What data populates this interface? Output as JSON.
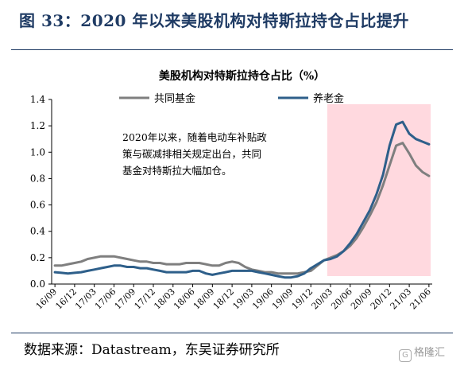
{
  "figure": {
    "title": "图 33：2020 年以来美股机构对特斯拉持仓占比提升",
    "source": "数据来源：Datastream，东吴证券研究所",
    "watermark": "格隆汇"
  },
  "chart_data": {
    "type": "line",
    "title": "美股机构对特斯拉持仓占比（%）",
    "xlabel": "",
    "ylabel": "",
    "ylim": [
      0,
      1.4
    ],
    "yticks": [
      "0.0",
      "0.2",
      "0.4",
      "0.6",
      "0.8",
      "1.0",
      "1.2",
      "1.4"
    ],
    "grid": false,
    "legend_position": "top",
    "x_tick_labels": [
      "16/09",
      "16/12",
      "17/03",
      "17/06",
      "17/09",
      "17/12",
      "18/03",
      "18/06",
      "18/09",
      "18/12",
      "19/03",
      "19/06",
      "19/09",
      "19/12",
      "20/03",
      "20/06",
      "20/09",
      "20/12",
      "21/03",
      "21/06"
    ],
    "x": [
      "16/09",
      "16/10",
      "16/11",
      "16/12",
      "17/01",
      "17/02",
      "17/03",
      "17/04",
      "17/05",
      "17/06",
      "17/07",
      "17/08",
      "17/09",
      "17/10",
      "17/11",
      "17/12",
      "18/01",
      "18/02",
      "18/03",
      "18/04",
      "18/05",
      "18/06",
      "18/07",
      "18/08",
      "18/09",
      "18/10",
      "18/11",
      "18/12",
      "19/01",
      "19/02",
      "19/03",
      "19/04",
      "19/05",
      "19/06",
      "19/07",
      "19/08",
      "19/09",
      "19/10",
      "19/11",
      "19/12",
      "20/01",
      "20/02",
      "20/03",
      "20/04",
      "20/05",
      "20/06",
      "20/07",
      "20/08",
      "20/09",
      "20/10",
      "20/11",
      "20/12",
      "21/01",
      "21/02",
      "21/03",
      "21/04",
      "21/05",
      "21/06"
    ],
    "series": [
      {
        "name": "共同基金",
        "color": "#7f7f7f",
        "values": [
          0.14,
          0.14,
          0.15,
          0.16,
          0.17,
          0.19,
          0.2,
          0.21,
          0.21,
          0.21,
          0.2,
          0.19,
          0.18,
          0.17,
          0.17,
          0.16,
          0.16,
          0.15,
          0.15,
          0.15,
          0.16,
          0.16,
          0.16,
          0.15,
          0.14,
          0.14,
          0.16,
          0.17,
          0.16,
          0.13,
          0.11,
          0.1,
          0.09,
          0.09,
          0.08,
          0.08,
          0.08,
          0.08,
          0.09,
          0.1,
          0.14,
          0.18,
          0.2,
          0.22,
          0.25,
          0.29,
          0.35,
          0.43,
          0.52,
          0.62,
          0.75,
          0.9,
          1.05,
          1.07,
          0.99,
          0.9,
          0.85,
          0.82
        ]
      },
      {
        "name": "养老金",
        "color": "#2e5f8a",
        "values": [
          0.09,
          0.085,
          0.08,
          0.085,
          0.09,
          0.1,
          0.11,
          0.12,
          0.13,
          0.14,
          0.14,
          0.13,
          0.13,
          0.12,
          0.12,
          0.11,
          0.1,
          0.09,
          0.09,
          0.09,
          0.09,
          0.1,
          0.1,
          0.08,
          0.07,
          0.08,
          0.09,
          0.1,
          0.1,
          0.1,
          0.1,
          0.09,
          0.08,
          0.07,
          0.06,
          0.05,
          0.05,
          0.06,
          0.08,
          0.12,
          0.15,
          0.18,
          0.19,
          0.21,
          0.25,
          0.31,
          0.38,
          0.47,
          0.56,
          0.68,
          0.83,
          1.05,
          1.21,
          1.23,
          1.14,
          1.1,
          1.08,
          1.06
        ]
      }
    ],
    "highlight": {
      "from": "20/03",
      "to": "21/06",
      "color": "#ffd9df"
    },
    "annotation": [
      "2020年以来，随着电动车补贴政",
      "策与碳减排相关规定出台，共同",
      "基金对特斯拉大幅加仓。"
    ]
  }
}
